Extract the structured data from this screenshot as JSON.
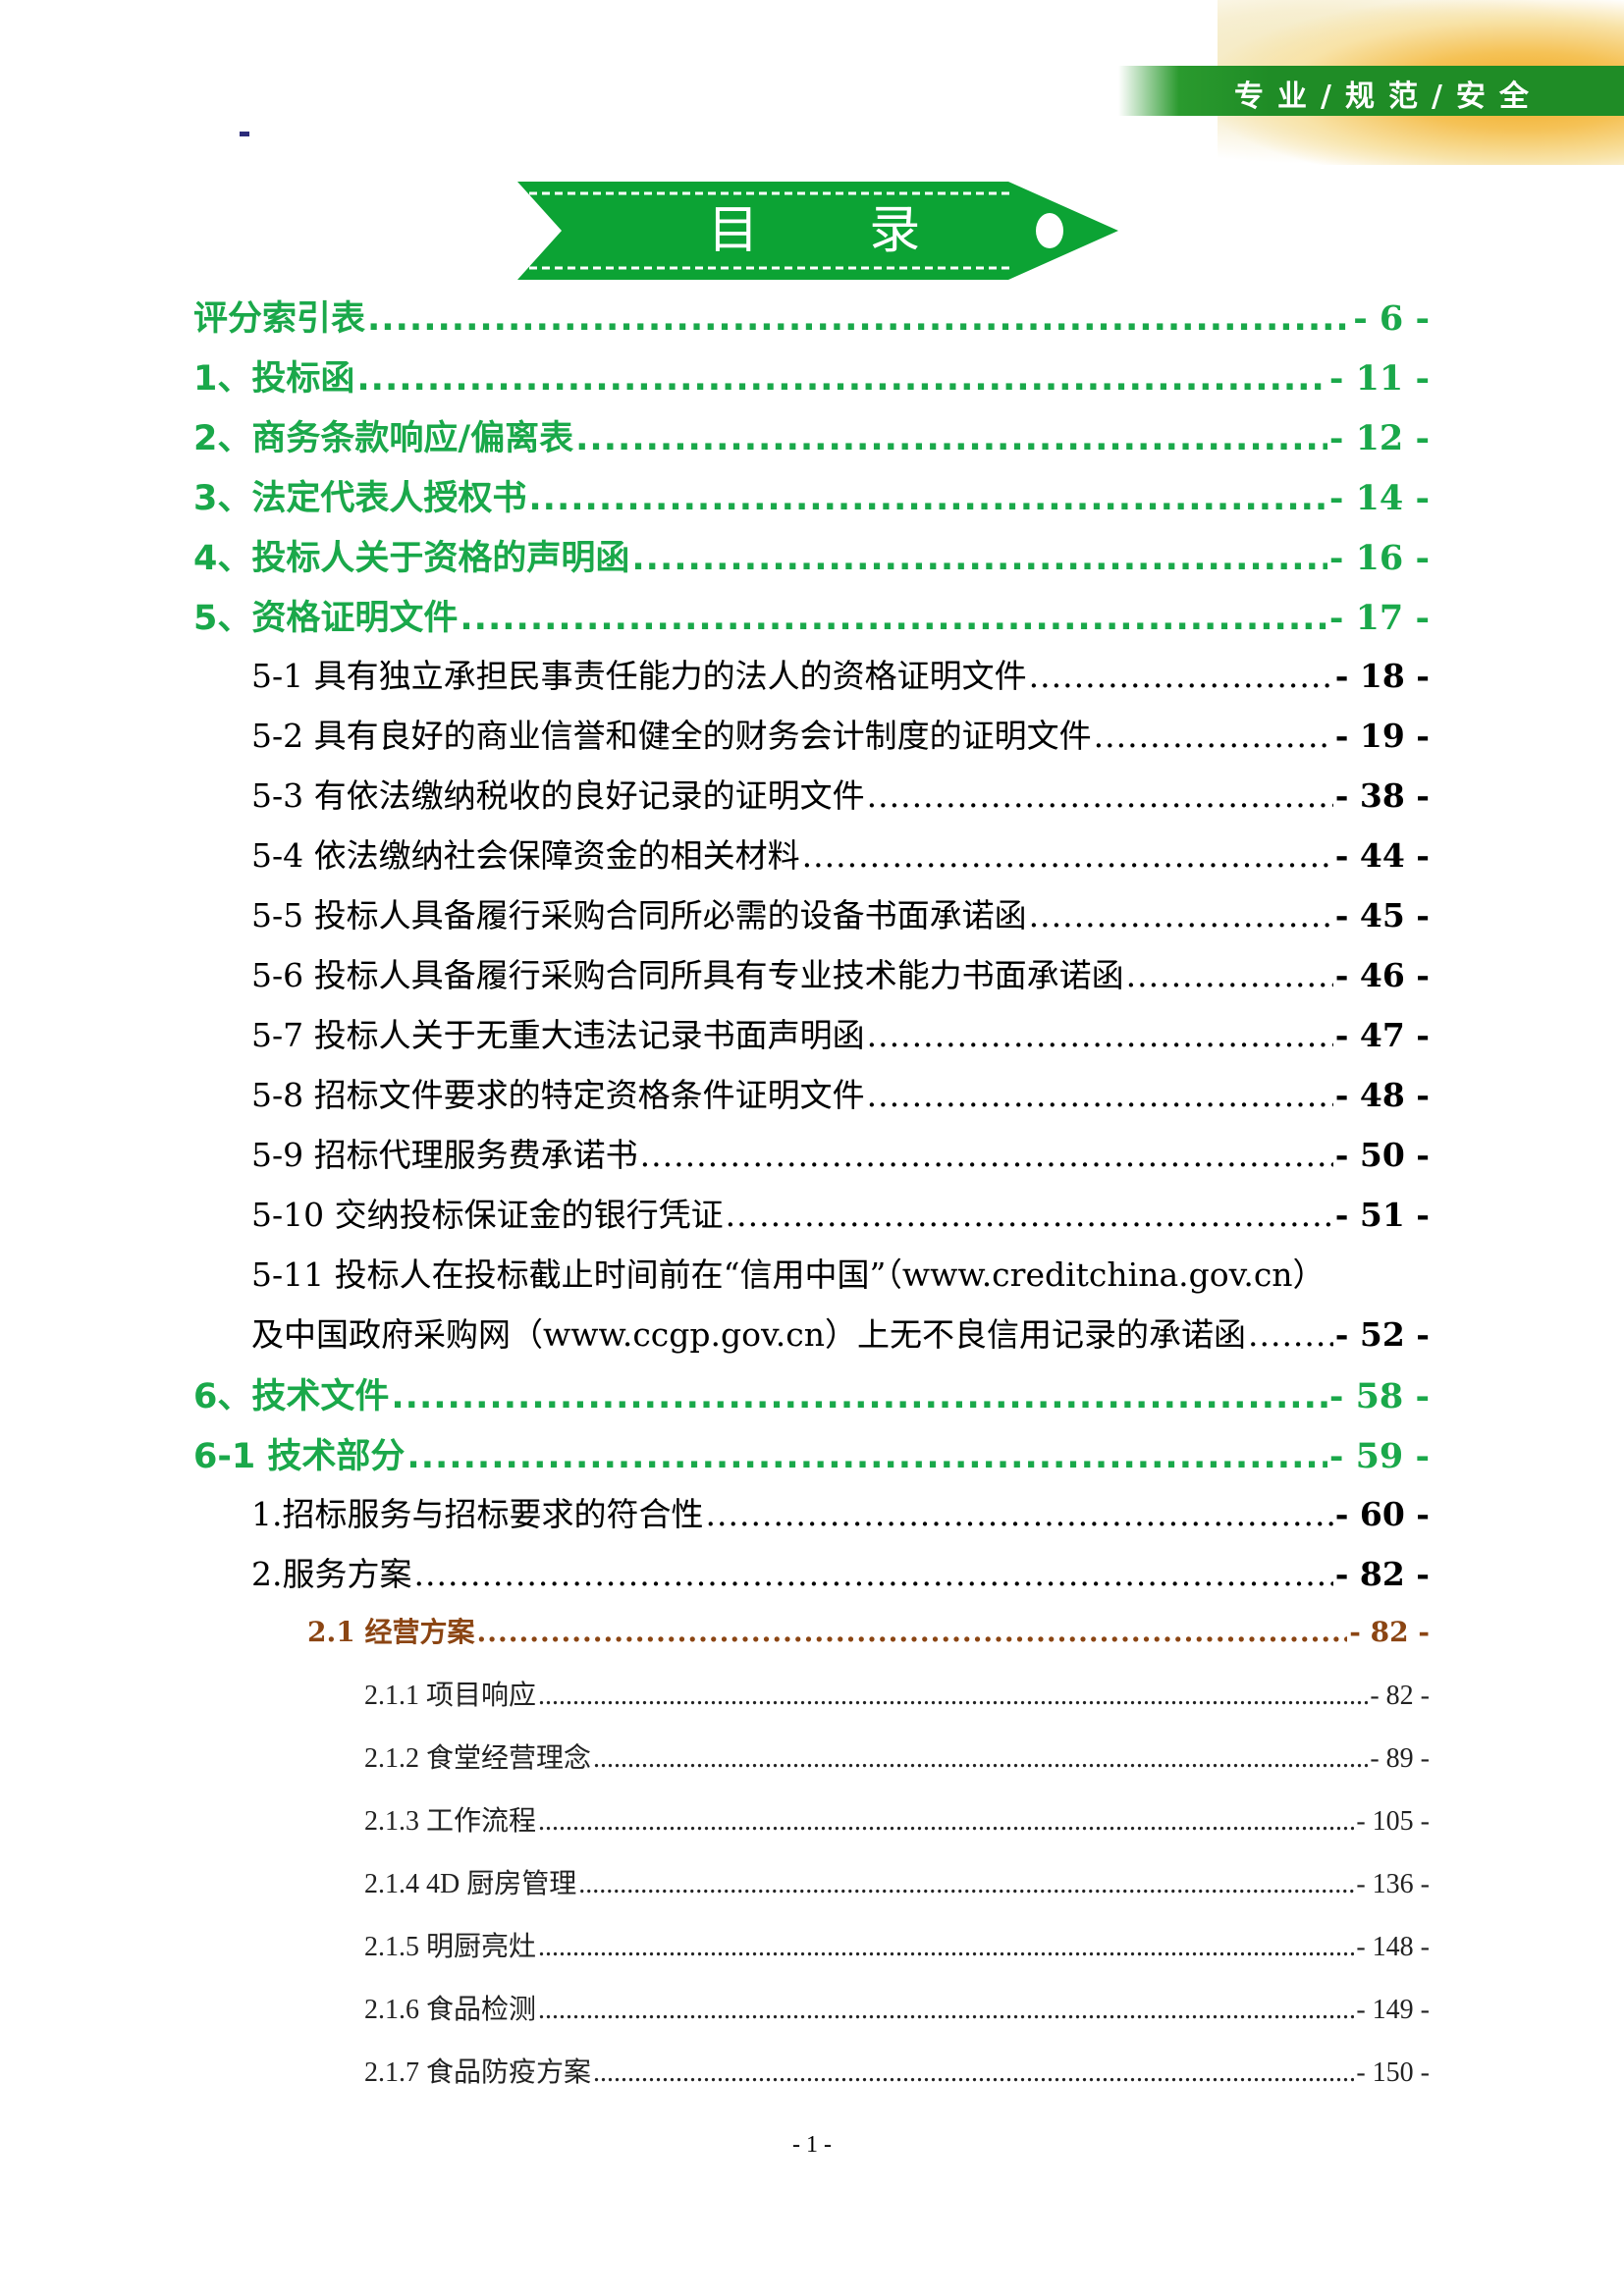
{
  "header": {
    "slogan": "专业/规范/安全",
    "title": "目 录",
    "accent_color": "#0ca334"
  },
  "toc": [
    {
      "level": 1,
      "title": "评分索引表",
      "page": "- 6 -"
    },
    {
      "level": 1,
      "title": "1、投标函",
      "page": "- 11 -"
    },
    {
      "level": 1,
      "title": "2、商务条款响应/偏离表",
      "page": "- 12 -"
    },
    {
      "level": 1,
      "title": "3、法定代表人授权书",
      "page": "- 14 -"
    },
    {
      "level": 1,
      "title": "4、投标人关于资格的声明函",
      "page": "- 16 -"
    },
    {
      "level": 1,
      "title": "5、资格证明文件",
      "page": "- 17 -"
    },
    {
      "level": 2,
      "title": "5-1 具有独立承担民事责任能力的法人的资格证明文件",
      "page": "- 18 -"
    },
    {
      "level": 2,
      "title": "5-2 具有良好的商业信誉和健全的财务会计制度的证明文件",
      "page": "- 19 -"
    },
    {
      "level": 2,
      "title": "5-3 有依法缴纳税收的良好记录的证明文件",
      "page": "- 38 -"
    },
    {
      "level": 2,
      "title": "5-4 依法缴纳社会保障资金的相关材料",
      "page": "- 44 -"
    },
    {
      "level": 2,
      "title": "5-5 投标人具备履行采购合同所必需的设备书面承诺函",
      "page": "- 45 -"
    },
    {
      "level": 2,
      "title": "5-6 投标人具备履行采购合同所具有专业技术能力书面承诺函",
      "page": "- 46 -"
    },
    {
      "level": 2,
      "title": "5-7 投标人关于无重大违法记录书面声明函",
      "page": "- 47 -"
    },
    {
      "level": 2,
      "title": "5-8 招标文件要求的特定资格条件证明文件",
      "page": "- 48 -"
    },
    {
      "level": 2,
      "title": "5-9 招标代理服务费承诺书",
      "page": "- 50 -"
    },
    {
      "level": 2,
      "title": "5-10 交纳投标保证金的银行凭证",
      "page": "- 51 -"
    },
    {
      "level": 2,
      "title": "5-11 投标人在投标截止时间前在“信用中国”（www.creditchina.gov.cn）",
      "page": ""
    },
    {
      "level": 2,
      "title": "及中国政府采购网（www.ccgp.gov.cn）上无不良信用记录的承诺函",
      "page": "- 52 -"
    },
    {
      "level": 1,
      "title": "6、技术文件",
      "page": "- 58 -"
    },
    {
      "level": 1,
      "title": "6-1 技术部分",
      "page": "- 59 -"
    },
    {
      "level": 2,
      "title": "1.招标服务与招标要求的符合性",
      "page": "- 60 -"
    },
    {
      "level": 2,
      "title": "2.服务方案",
      "page": "- 82 -"
    },
    {
      "level": 3,
      "title": "2.1 经营方案",
      "page": "- 82 -"
    },
    {
      "level": 4,
      "title": "2.1.1 项目响应",
      "page": "- 82 -"
    },
    {
      "level": 4,
      "title": "2.1.2 食堂经营理念",
      "page": "- 89 -"
    },
    {
      "level": 4,
      "title": "2.1.3 工作流程",
      "page": "- 105 -"
    },
    {
      "level": 4,
      "title": "2.1.4 4D 厨房管理",
      "page": "- 136 -"
    },
    {
      "level": 4,
      "title": "2.1.5 明厨亮灶",
      "page": "- 148 -"
    },
    {
      "level": 4,
      "title": "2.1.6 食品检测",
      "page": "- 149 -"
    },
    {
      "level": 4,
      "title": "2.1.7 食品防疫方案",
      "page": "- 150 -"
    }
  ],
  "footer": {
    "page_number": "- 1 -"
  }
}
